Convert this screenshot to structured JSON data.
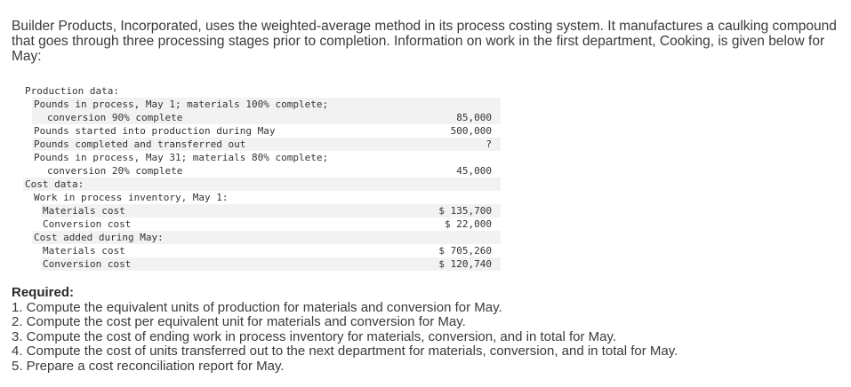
{
  "intro": "Builder Products, Incorporated, uses the weighted-average method in its process costing system. It manufactures a caulking compound that goes through three processing stages prior to completion. Information on work in the first department, Cooking, is given below for May:",
  "table": {
    "production_header": "Production data:",
    "wip_may1_line1": "Pounds in process, May 1; materials 100% complete;",
    "wip_may1_line2": "conversion 90% complete",
    "wip_may1_value": "85,000",
    "started_label": "Pounds started into production during May",
    "started_value": "500,000",
    "completed_label": "Pounds completed and transferred out",
    "completed_value": "?",
    "wip_may31_line1": "Pounds in process, May 31; materials 80% complete;",
    "wip_may31_line2": "conversion 20% complete",
    "wip_may31_value": "45,000",
    "cost_header": "Cost data:",
    "wip_inventory_header": "Work in process inventory, May 1:",
    "materials_cost_label": "Materials cost",
    "materials_cost_value": "$ 135,700",
    "conversion_cost_label": "Conversion cost",
    "conversion_cost_value": "$ 22,000",
    "added_header": "Cost added during May:",
    "added_materials_label": "Materials cost",
    "added_materials_value": "$ 705,260",
    "added_conversion_label": "Conversion cost",
    "added_conversion_value": "$ 120,740"
  },
  "required": {
    "title": "Required:",
    "items": [
      "1. Compute the equivalent units of production for materials and conversion for May.",
      "2. Compute the cost per equivalent unit for materials and conversion for May.",
      "3. Compute the cost of ending work in process inventory for materials, conversion, and in total for May.",
      "4. Compute the cost of units transferred out to the next department for materials, conversion, and in total for May.",
      "5. Prepare a cost reconciliation report for May."
    ]
  }
}
